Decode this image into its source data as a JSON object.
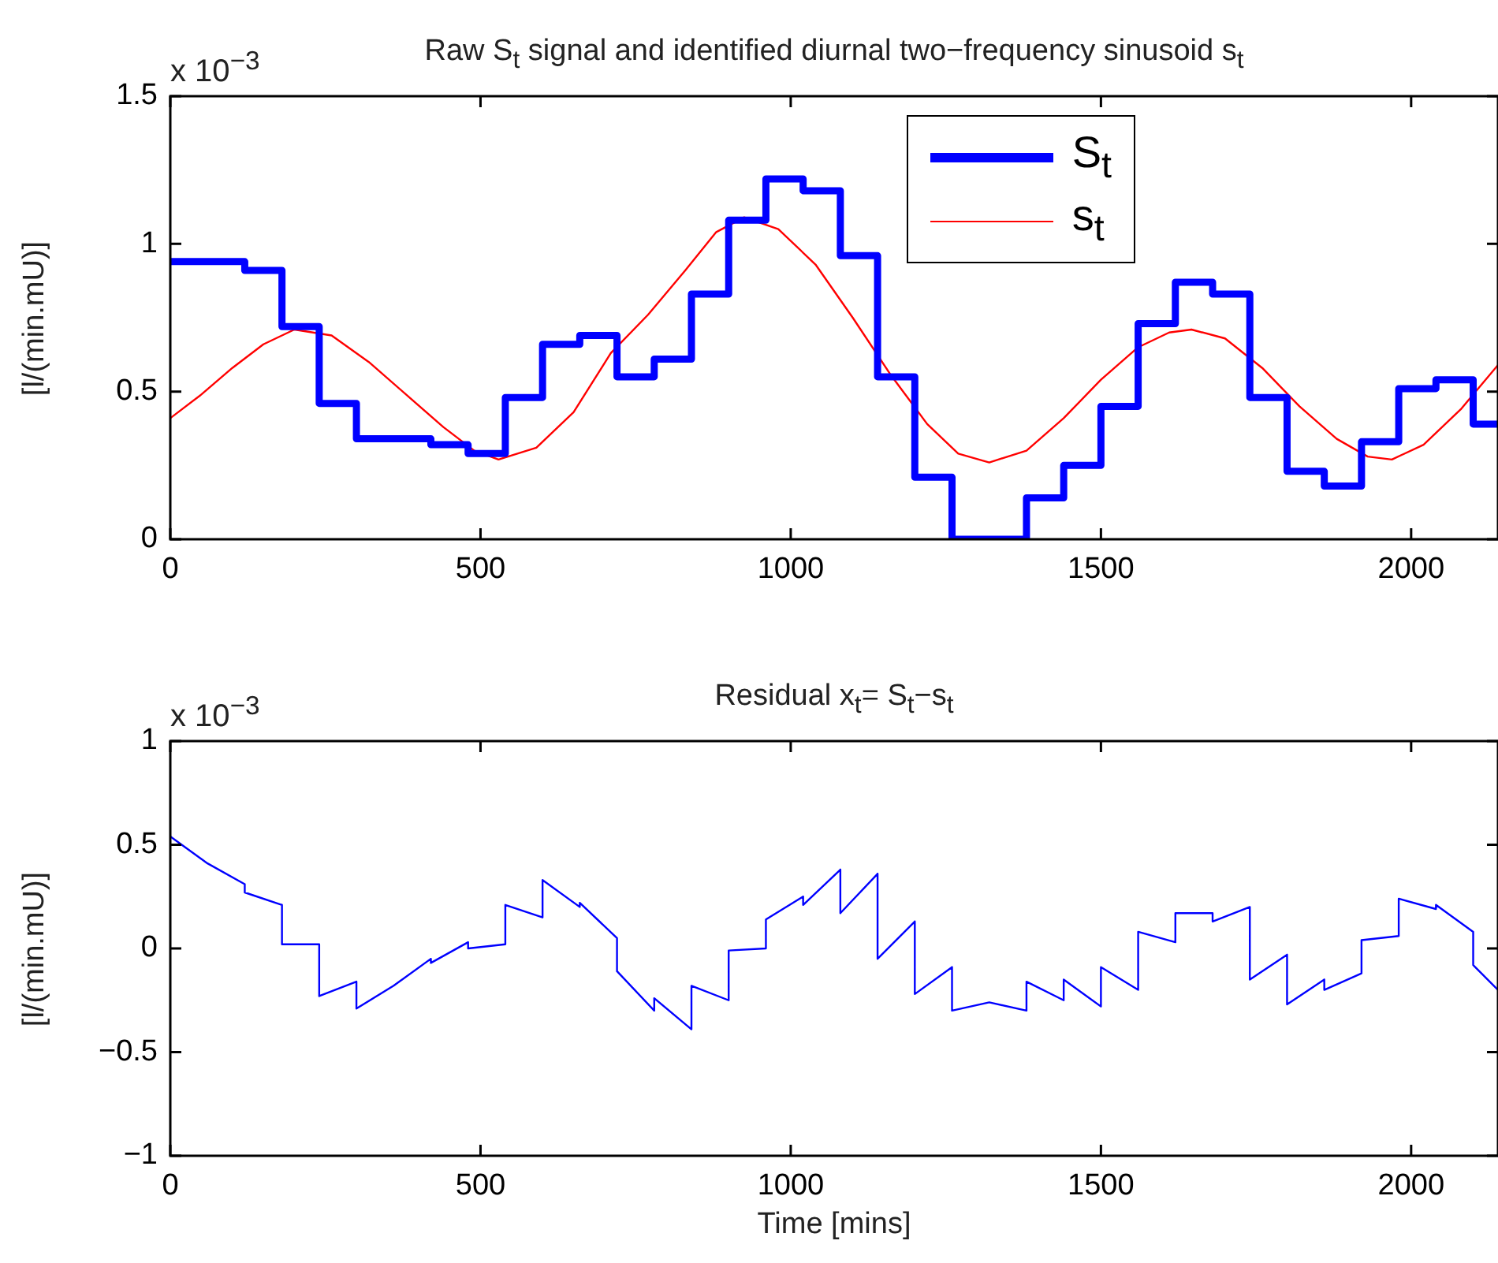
{
  "chart_data": [
    {
      "type": "step",
      "title": "Raw S$_{t}$ signal and identified diurnal two−frequency sinusoid s$_{t}$",
      "ylabel": "[l/(min.mU)]",
      "annotations": [
        "x 10$^{−3}$"
      ],
      "xlim": [
        0,
        2140
      ],
      "xticks": [
        0,
        500,
        1000,
        1500,
        2000
      ],
      "ylim": [
        0,
        1.5
      ],
      "yticks": [
        0,
        0.5,
        1,
        1.5
      ],
      "grid": false,
      "legend": "top right",
      "series": [
        {
          "name": "S$_{t}$",
          "color": "#0000ff",
          "x": [
            0,
            120,
            180,
            240,
            300,
            420,
            480,
            540,
            600,
            660,
            720,
            780,
            840,
            900,
            960,
            1020,
            1080,
            1140,
            1200,
            1260,
            1380,
            1440,
            1500,
            1560,
            1620,
            1680,
            1740,
            1800,
            1860,
            1920,
            1980,
            2040,
            2100,
            2140
          ],
          "values": [
            0.94,
            0.91,
            0.72,
            0.46,
            0.34,
            0.32,
            0.29,
            0.48,
            0.66,
            0.69,
            0.55,
            0.61,
            0.83,
            1.08,
            1.22,
            1.18,
            0.96,
            0.55,
            0.21,
            0,
            0.14,
            0.25,
            0.45,
            0.73,
            0.87,
            0.83,
            0.48,
            0.23,
            0.18,
            0.33,
            0.51,
            0.54,
            0.39,
            0.39
          ]
        },
        {
          "name": "s$_{t}$",
          "type": "line",
          "color": "#ff0000",
          "x": [
            0,
            50,
            100,
            150,
            200,
            260,
            320,
            380,
            440,
            490,
            529,
            590,
            650,
            710,
            770,
            830,
            880,
            925,
            980,
            1040,
            1100,
            1160,
            1220,
            1270,
            1320,
            1380,
            1440,
            1500,
            1560,
            1610,
            1646,
            1700,
            1760,
            1820,
            1880,
            1930,
            1969,
            2020,
            2080,
            2140
          ],
          "values": [
            0.41,
            0.49,
            0.58,
            0.66,
            0.71,
            0.69,
            0.6,
            0.49,
            0.38,
            0.3,
            0.27,
            0.31,
            0.43,
            0.63,
            0.76,
            0.91,
            1.04,
            1.09,
            1.05,
            0.93,
            0.75,
            0.56,
            0.39,
            0.29,
            0.26,
            0.3,
            0.41,
            0.54,
            0.65,
            0.7,
            0.71,
            0.68,
            0.58,
            0.45,
            0.34,
            0.28,
            0.27,
            0.32,
            0.44,
            0.59
          ]
        }
      ]
    },
    {
      "type": "line",
      "title": "Residual x$_{t}$= S$_{t}$−s$_{t}$",
      "xlabel": "Time [mins]",
      "ylabel": "[l/(min.mU)]",
      "annotations": [
        "x 10$^{−3}$"
      ],
      "xlim": [
        0,
        2140
      ],
      "xticks": [
        0,
        500,
        1000,
        1500,
        2000
      ],
      "ylim": [
        -1,
        1
      ],
      "yticks": [
        {
          "value": -1,
          "label": "−1"
        },
        {
          "value": -0.5,
          "label": "−0.5"
        },
        0,
        0.5,
        1
      ],
      "grid": false,
      "series": [
        {
          "color": "#0000ff",
          "x": [
            0,
            60,
            120,
            120,
            180,
            180,
            240,
            240,
            300,
            300,
            360,
            420,
            420,
            480,
            480,
            540,
            540,
            600,
            600,
            660,
            660,
            720,
            720,
            780,
            780,
            840,
            840,
            900,
            900,
            960,
            960,
            1020,
            1020,
            1080,
            1080,
            1140,
            1140,
            1200,
            1200,
            1260,
            1260,
            1320,
            1380,
            1380,
            1440,
            1440,
            1500,
            1500,
            1560,
            1560,
            1620,
            1620,
            1680,
            1680,
            1740,
            1740,
            1800,
            1800,
            1860,
            1860,
            1920,
            1920,
            1980,
            1980,
            2040,
            2040,
            2100,
            2100,
            2140
          ],
          "values": [
            0.54,
            0.41,
            0.31,
            0.27,
            0.21,
            0.02,
            0.02,
            -0.23,
            -0.16,
            -0.29,
            -0.18,
            -0.05,
            -0.07,
            0.03,
            0.0,
            0.02,
            0.21,
            0.15,
            0.33,
            0.2,
            0.22,
            0.05,
            -0.11,
            -0.3,
            -0.24,
            -0.39,
            -0.18,
            -0.25,
            -0.01,
            0.0,
            0.14,
            0.25,
            0.21,
            0.38,
            0.17,
            0.36,
            -0.05,
            0.13,
            -0.22,
            -0.09,
            -0.3,
            -0.26,
            -0.3,
            -0.16,
            -0.25,
            -0.15,
            -0.28,
            -0.09,
            -0.2,
            0.08,
            0.03,
            0.17,
            0.17,
            0.13,
            0.2,
            -0.15,
            -0.03,
            -0.27,
            -0.15,
            -0.2,
            -0.12,
            0.04,
            0.06,
            0.24,
            0.19,
            0.21,
            0.08,
            -0.08,
            -0.2
          ]
        }
      ]
    }
  ]
}
